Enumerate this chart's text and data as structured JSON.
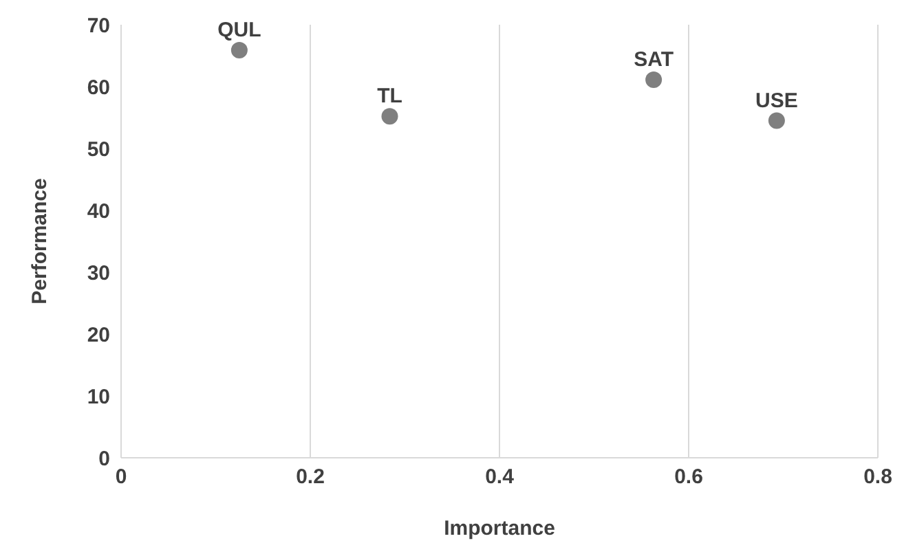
{
  "chart_data": {
    "type": "scatter",
    "xlabel": "Importance",
    "ylabel": "Performance",
    "x": [
      0.125,
      0.284,
      0.563,
      0.693
    ],
    "series": [
      {
        "color": "#7f7f7f",
        "values": [
          65.9,
          55.2,
          61.1,
          54.5
        ]
      }
    ],
    "xlim": [
      0,
      0.8
    ],
    "xticks": [
      0,
      0.2,
      0.4,
      0.6,
      0.8
    ],
    "ylim": [
      0,
      70
    ],
    "yticks": [
      0,
      10,
      20,
      30,
      40,
      50,
      60,
      70
    ],
    "grid": "x",
    "marker": "circle",
    "annotations": [
      {
        "text": "QUL",
        "x": 0.125,
        "y": 65.9
      },
      {
        "text": "TL",
        "x": 0.284,
        "y": 55.2
      },
      {
        "text": "SAT",
        "x": 0.563,
        "y": 61.1
      },
      {
        "text": "USE",
        "x": 0.693,
        "y": 54.5
      }
    ]
  }
}
